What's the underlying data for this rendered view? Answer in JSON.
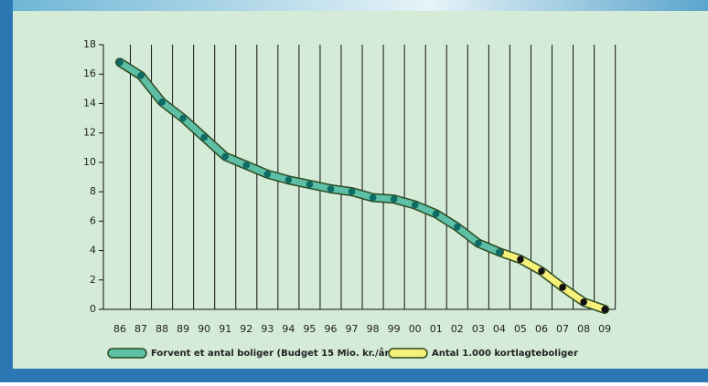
{
  "chart_data": {
    "type": "line",
    "categories": [
      "86",
      "87",
      "88",
      "89",
      "90",
      "91",
      "92",
      "93",
      "94",
      "95",
      "96",
      "97",
      "98",
      "99",
      "00",
      "01",
      "02",
      "03",
      "04",
      "05",
      "06",
      "07",
      "08",
      "09"
    ],
    "series": [
      {
        "name": "Forvent et antal boliger (Budget 15 Mio. kr./år)",
        "color": "#5cbfa6",
        "marker_color": "#0d6b66",
        "values": [
          16.8,
          15.9,
          14.1,
          13.0,
          11.7,
          10.4,
          9.8,
          9.2,
          8.8,
          8.5,
          8.2,
          8.0,
          7.6,
          7.5,
          7.1,
          6.5,
          5.6,
          4.5,
          3.9,
          null,
          null,
          null,
          null,
          null
        ]
      },
      {
        "name": "Antal 1.000 kortlagteboliger",
        "color": "#f5f07a",
        "marker_color": "#111111",
        "values": [
          null,
          null,
          null,
          null,
          null,
          null,
          null,
          null,
          null,
          null,
          null,
          null,
          null,
          null,
          null,
          null,
          null,
          null,
          3.9,
          3.4,
          2.6,
          1.5,
          0.5,
          0.0
        ]
      }
    ],
    "ylim": [
      0,
      18
    ],
    "yticks": [
      0,
      2,
      4,
      6,
      8,
      10,
      12,
      14,
      16,
      18
    ],
    "grid": true
  }
}
